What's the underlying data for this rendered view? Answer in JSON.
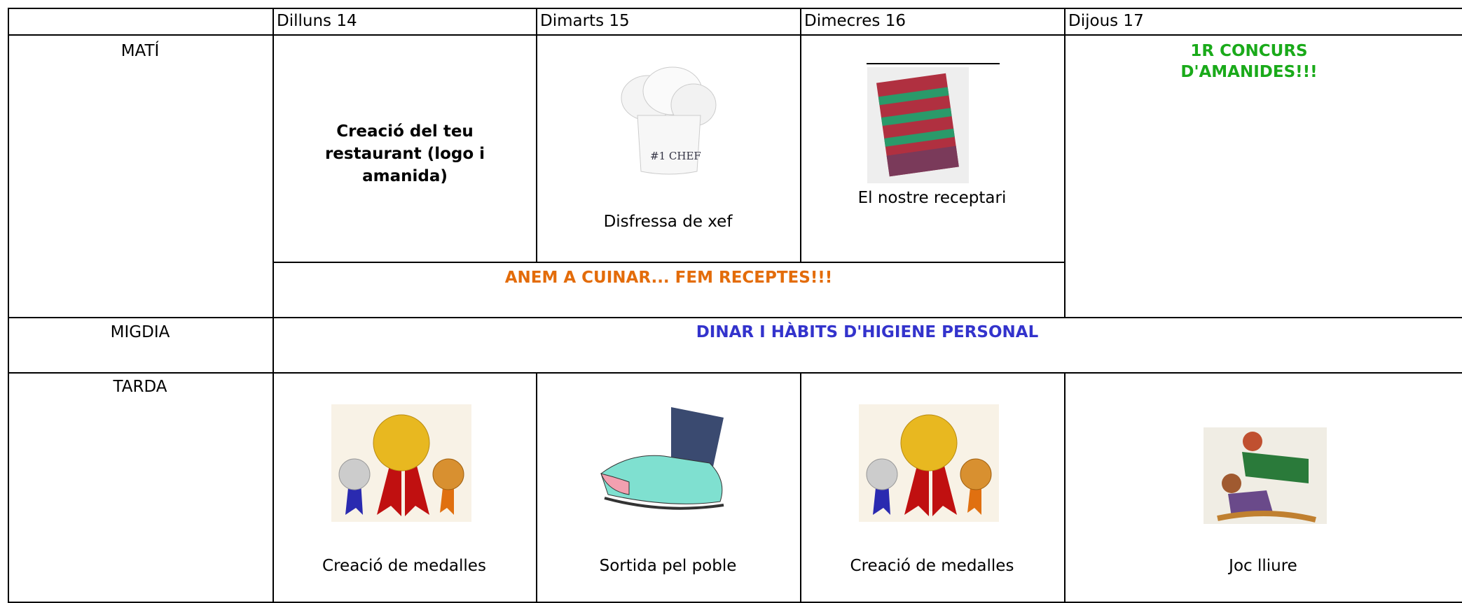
{
  "table": {
    "columns": [
      "Dilluns 14",
      "Dimarts 15",
      "Dimecres 16",
      "Dijous 17"
    ],
    "rows": [
      {
        "label": "MATÍ",
        "cells": [
          "Creació del teu restaurant (logo i amanida)",
          "Disfressa de xef",
          "El nostre receptari",
          "1R CONCURS D'AMANIDES!!!"
        ],
        "banner": "ANEM A CUINAR... FEM RECEPTES!!!"
      },
      {
        "label": "MIGDIA",
        "banner": "DINAR I HÀBITS D'HIGIENE PERSONAL"
      },
      {
        "label": "TARDA",
        "cells": [
          "Creació de medalles",
          "Sortida pel poble",
          "Creació de medalles",
          "Joc lliure"
        ]
      }
    ]
  }
}
